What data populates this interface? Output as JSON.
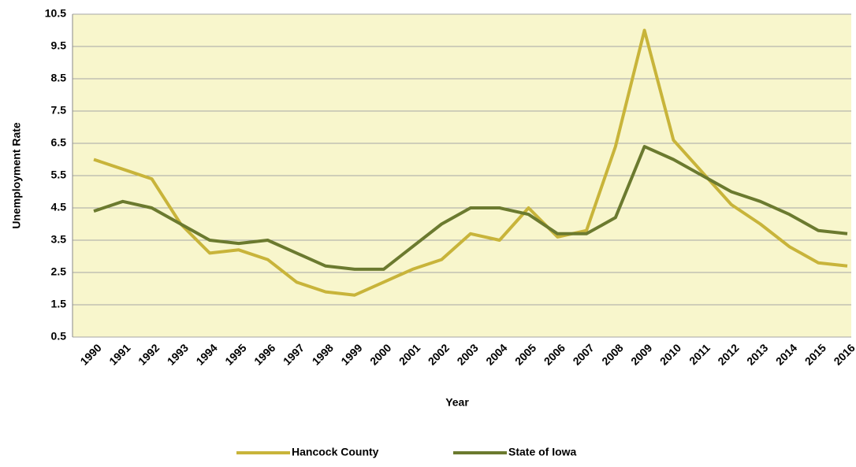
{
  "chart_data": {
    "type": "line",
    "x_label": "Year",
    "y_label": "Unemployment Rate",
    "categories": [
      "1990",
      "1991",
      "1992",
      "1993",
      "1994",
      "1995",
      "1996",
      "1997",
      "1998",
      "1999",
      "2000",
      "2001",
      "2002",
      "2003",
      "2004",
      "2005",
      "2006",
      "2007",
      "2008",
      "2009",
      "2010",
      "2011",
      "2012",
      "2013",
      "2014",
      "2015",
      "2016"
    ],
    "series": [
      {
        "name": "Hancock County",
        "color": "#c8b43a",
        "values": [
          6.0,
          5.7,
          5.4,
          4.0,
          3.1,
          3.2,
          2.9,
          2.2,
          1.9,
          1.8,
          2.2,
          2.6,
          2.9,
          3.7,
          3.5,
          4.5,
          3.6,
          3.8,
          6.4,
          10.0,
          6.6,
          5.6,
          4.6,
          4.0,
          3.3,
          2.8,
          2.7
        ]
      },
      {
        "name": "State of Iowa",
        "color": "#6b7a2f",
        "values": [
          4.4,
          4.7,
          4.5,
          4.0,
          3.5,
          3.4,
          3.5,
          3.1,
          2.7,
          2.6,
          2.6,
          3.3,
          4.0,
          4.5,
          4.5,
          4.3,
          3.7,
          3.7,
          4.2,
          6.4,
          6.0,
          5.5,
          5.0,
          4.7,
          4.3,
          3.8,
          3.7
        ]
      }
    ],
    "ylim": [
      0.5,
      10.5
    ],
    "yticks": [
      0.5,
      1.5,
      2.5,
      3.5,
      4.5,
      5.5,
      6.5,
      7.5,
      8.5,
      9.5,
      10.5
    ],
    "grid": true,
    "legend": "bottom"
  }
}
